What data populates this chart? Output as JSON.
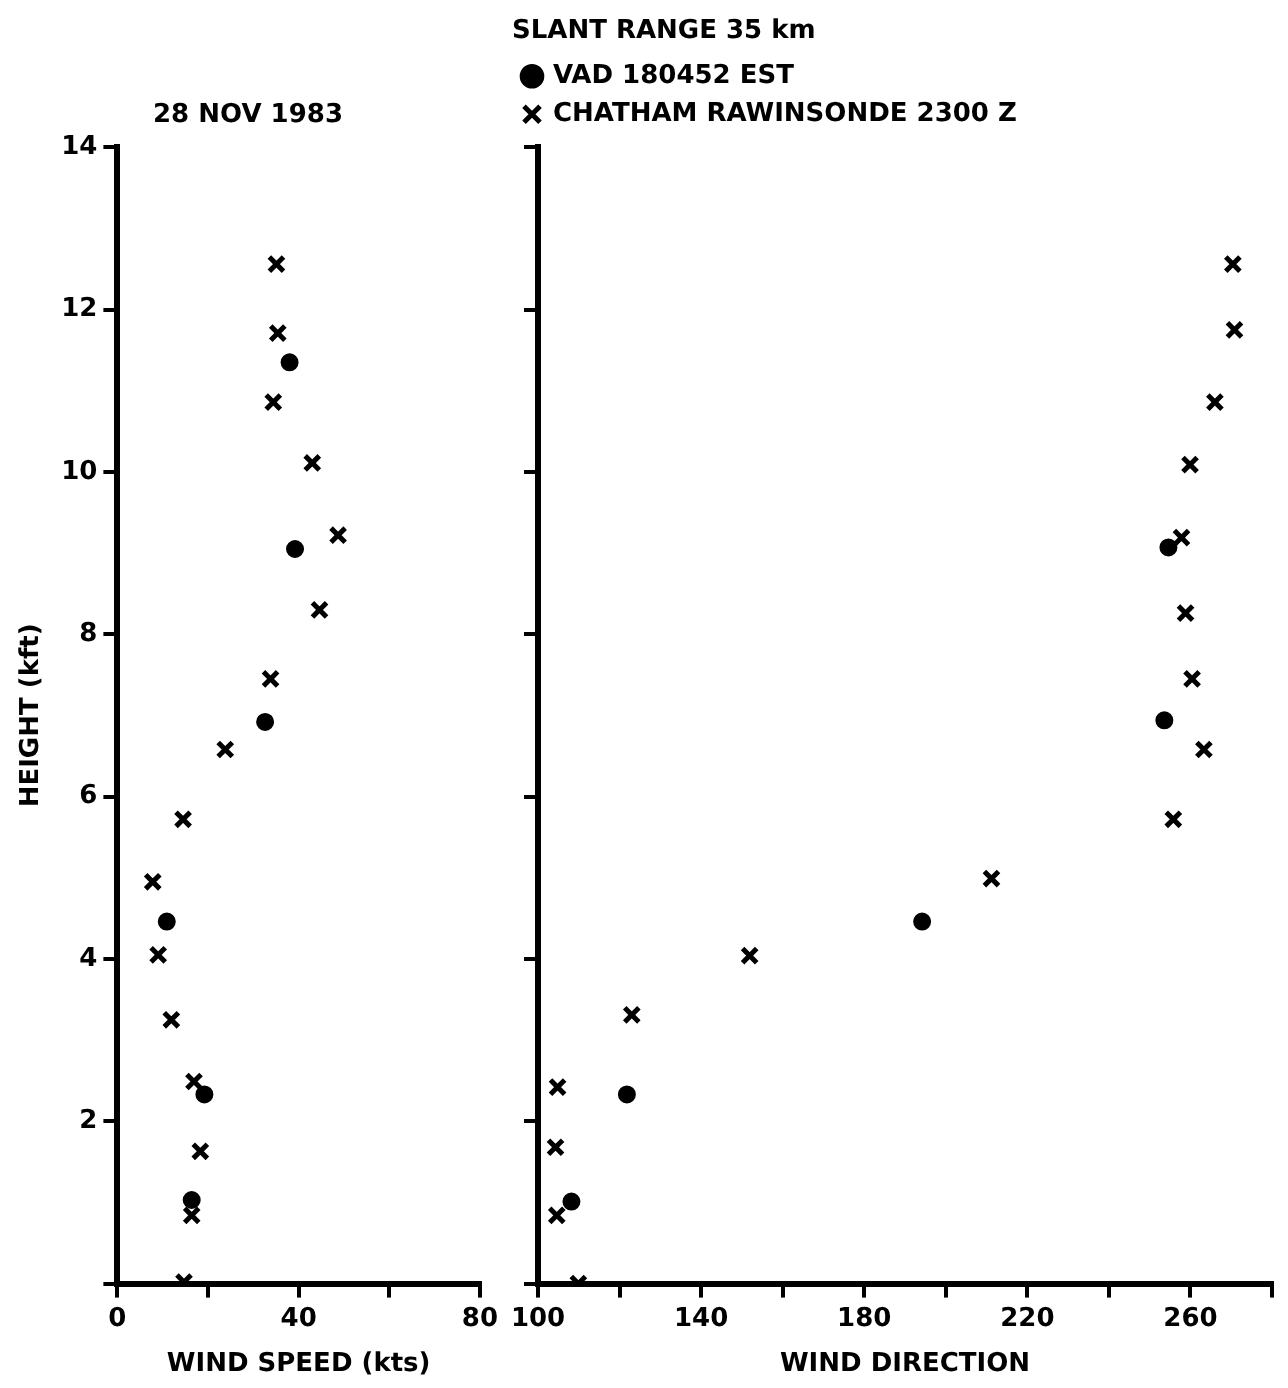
{
  "chart_data": [
    {
      "type": "scatter",
      "title": "28 NOV 1983",
      "xlabel": "WIND SPEED (kts)",
      "ylabel": "HEIGHT (kft)",
      "xlim": [
        0,
        80
      ],
      "xticks": [
        0,
        {
          "value": 20,
          "label": null
        },
        40,
        {
          "value": 60,
          "label": null
        },
        80
      ],
      "ylim": [
        0,
        14
      ],
      "yticks": [
        {
          "value": 0,
          "label": null
        },
        2,
        4,
        6,
        8,
        10,
        12,
        14
      ],
      "grid": false,
      "legend": false,
      "series": [
        {
          "color": "#000000",
          "marker": "circle",
          "x": [
            38.0,
            39.2,
            32.6,
            10.9,
            19.2,
            16.4
          ],
          "values": [
            11.35,
            9.05,
            6.92,
            4.46,
            2.33,
            1.03
          ]
        },
        {
          "color": "#000000",
          "marker": "cross",
          "x": [
            35.1,
            35.4,
            34.4,
            43.0,
            48.7,
            44.6,
            33.8,
            23.8,
            14.5,
            7.8,
            9.0,
            11.9,
            16.9,
            18.3,
            16.4,
            14.7
          ],
          "values": [
            12.56,
            11.71,
            10.86,
            10.11,
            9.22,
            8.3,
            7.45,
            6.58,
            5.72,
            4.95,
            4.05,
            3.25,
            2.49,
            1.63,
            0.84,
            0.02
          ]
        }
      ]
    },
    {
      "type": "scatter",
      "title": "SLANT RANGE 35 km",
      "xlabel": "WIND DIRECTION",
      "xlim": [
        100,
        280
      ],
      "xticks": [
        100,
        {
          "value": 120,
          "label": null
        },
        140,
        {
          "value": 160,
          "label": null
        },
        180,
        {
          "value": 200,
          "label": null
        },
        220,
        {
          "value": 240,
          "label": null
        },
        260,
        {
          "value": 280,
          "label": null
        }
      ],
      "ylim": [
        0,
        14
      ],
      "yticks": [
        0,
        2,
        4,
        6,
        8,
        10,
        12,
        14
      ],
      "tick_labels": "x",
      "grid": false,
      "legend": "top left",
      "series": [
        {
          "name": "VAD 180452 EST",
          "color": "#000000",
          "marker": "circle",
          "x": [
            254.6,
            253.6,
            194.2,
            121.8,
            108.2
          ],
          "values": [
            9.07,
            6.94,
            4.46,
            2.33,
            1.01
          ]
        },
        {
          "name": "CHATHAM RAWINSONDE 2300 Z",
          "color": "#000000",
          "marker": "cross",
          "x": [
            270.4,
            270.8,
            266.0,
            259.9,
            257.8,
            258.8,
            260.4,
            263.3,
            255.8,
            211.2,
            151.9,
            123.0,
            104.8,
            104.3,
            104.6,
            109.9
          ],
          "values": [
            12.56,
            11.75,
            10.86,
            10.09,
            9.19,
            8.26,
            7.45,
            6.58,
            5.72,
            4.99,
            4.04,
            3.31,
            2.42,
            1.68,
            0.84,
            0.0
          ]
        }
      ]
    }
  ]
}
